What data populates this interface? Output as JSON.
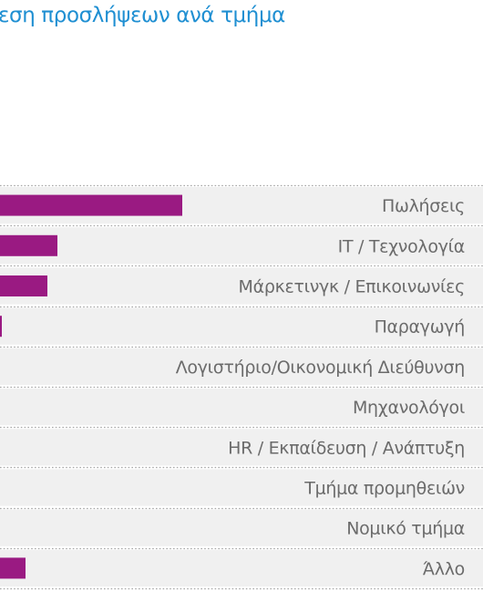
{
  "chart_data": {
    "type": "bar",
    "orientation": "horizontal",
    "title": "εση προσλήψεων ανά τμήμα",
    "categories": [
      "Πωλήσεις",
      "IT / Τεχνολογία",
      "Μάρκετινγκ / Επικοινωνίες",
      "Παραγωγή",
      "Λογιστήριο/Οικονομική Διεύθυνση",
      "Μηχανολόγοι",
      "HR / Εκπαίδευση / Ανάπτυξη",
      "Τμήμα προμηθειών",
      "Νομικό τμήμα",
      "Άλλο"
    ],
    "values": [
      200,
      63,
      52,
      2,
      0,
      0,
      0,
      0,
      0,
      28
    ],
    "xlim": [
      0,
      530
    ],
    "grid": true,
    "legend": "none",
    "colors": {
      "bar": "#9a1a82",
      "title": "#1f8fd2",
      "label": "#6b6b6b",
      "gridline": "#a8a8a8",
      "band": "#f0f0f0"
    }
  }
}
